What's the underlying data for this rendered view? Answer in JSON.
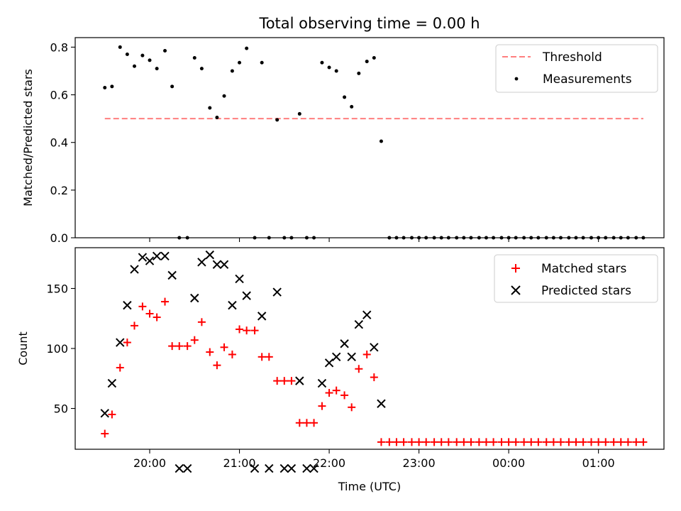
{
  "chart_data": [
    {
      "type": "scatter",
      "title": "Total observing time = 0.00 h",
      "xlabel": "",
      "ylabel": "Matched/Predicted stars",
      "xlim": [
        -0.33,
        6.23
      ],
      "ylim": [
        0,
        0.84
      ],
      "y_ticks": [
        0.0,
        0.2,
        0.4,
        0.6,
        0.8
      ],
      "y_tick_labels": [
        "0.0",
        "0.2",
        "0.4",
        "0.6",
        "0.8"
      ],
      "x_ticks": [
        0.5,
        1.5,
        2.5,
        3.5,
        4.5,
        5.5
      ],
      "x_tick_labels_visible": false,
      "grid": false,
      "legend": "top-right",
      "series": [
        {
          "name": "Threshold",
          "kind": "line",
          "style": "dashed",
          "color": "#ff7f7f",
          "x": [
            0.0,
            6.0
          ],
          "y": [
            0.5,
            0.5
          ]
        },
        {
          "name": "Measurements",
          "kind": "scatter",
          "marker": "dot",
          "color": "#000000",
          "x": [
            0.0,
            0.08,
            0.17,
            0.25,
            0.33,
            0.42,
            0.5,
            0.58,
            0.67,
            0.75,
            0.83,
            0.92,
            1.0,
            1.08,
            1.17,
            1.25,
            1.33,
            1.42,
            1.5,
            1.58,
            1.67,
            1.75,
            1.83,
            1.92,
            2.0,
            2.08,
            2.17,
            2.25,
            2.33,
            2.42,
            2.5,
            2.58,
            2.67,
            2.75,
            2.83,
            2.92,
            3.0,
            3.08,
            3.17,
            3.25,
            3.33,
            3.42,
            3.5,
            3.58,
            3.67,
            3.75,
            3.83,
            3.92,
            4.0,
            4.08,
            4.17,
            4.25,
            4.33,
            4.42,
            4.5,
            4.58,
            4.67,
            4.75,
            4.83,
            4.92,
            5.0,
            5.08,
            5.17,
            5.25,
            5.33,
            5.42,
            5.5,
            5.58,
            5.67,
            5.75,
            5.83,
            5.92,
            6.0
          ],
          "y": [
            0.63,
            0.635,
            0.8,
            0.77,
            0.72,
            0.765,
            0.745,
            0.71,
            0.785,
            0.635,
            0.0,
            0.0,
            0.755,
            0.71,
            0.545,
            0.505,
            0.595,
            0.7,
            0.735,
            0.795,
            0.0,
            0.735,
            0.0,
            0.495,
            0.0,
            0.0,
            0.52,
            0.0,
            0.0,
            0.735,
            0.715,
            0.7,
            0.59,
            0.55,
            0.69,
            0.74,
            0.755,
            0.405,
            0.0,
            0.0,
            0.0,
            0.0,
            0.0,
            0.0,
            0.0,
            0.0,
            0.0,
            0.0,
            0.0,
            0.0,
            0.0,
            0.0,
            0.0,
            0.0,
            0.0,
            0.0,
            0.0,
            0.0,
            0.0,
            0.0,
            0.0,
            0.0,
            0.0,
            0.0,
            0.0,
            0.0,
            0.0,
            0.0,
            0.0,
            0.0,
            0.0,
            0.0,
            0.0
          ]
        }
      ]
    },
    {
      "type": "scatter",
      "title": "",
      "xlabel": "Time (UTC)",
      "ylabel": "Count",
      "xlim": [
        -0.33,
        6.23
      ],
      "ylim": [
        16,
        184
      ],
      "y_ticks": [
        50,
        100,
        150
      ],
      "y_tick_labels": [
        "50",
        "100",
        "150"
      ],
      "x_ticks": [
        0.5,
        1.5,
        2.5,
        3.5,
        4.5,
        5.5
      ],
      "x_tick_labels": [
        "20:00",
        "21:00",
        "22:00",
        "23:00",
        "00:00",
        "01:00"
      ],
      "grid": false,
      "legend": "top-right",
      "series": [
        {
          "name": "Matched stars",
          "marker": "plus",
          "color": "#ff0000",
          "x": [
            0.0,
            0.08,
            0.17,
            0.25,
            0.33,
            0.42,
            0.5,
            0.58,
            0.67,
            0.75,
            0.83,
            0.92,
            1.0,
            1.08,
            1.17,
            1.25,
            1.33,
            1.42,
            1.5,
            1.58,
            1.67,
            1.75,
            1.83,
            1.92,
            2.0,
            2.08,
            2.17,
            2.25,
            2.33,
            2.42,
            2.5,
            2.58,
            2.67,
            2.75,
            2.83,
            2.92,
            3.0,
            3.08,
            3.17,
            3.25,
            3.33,
            3.42,
            3.5,
            3.58,
            3.67,
            3.75,
            3.83,
            3.92,
            4.0,
            4.08,
            4.17,
            4.25,
            4.33,
            4.42,
            4.5,
            4.58,
            4.67,
            4.75,
            4.83,
            4.92,
            5.0,
            5.08,
            5.17,
            5.25,
            5.33,
            5.42,
            5.5,
            5.58,
            5.67,
            5.75,
            5.83,
            5.92,
            6.0
          ],
          "y": [
            29,
            45,
            84,
            105,
            119,
            135,
            129,
            126,
            139,
            102,
            102,
            102,
            107,
            122,
            97,
            86,
            101,
            95,
            116,
            115,
            115,
            93,
            93,
            73,
            73,
            73,
            38,
            38,
            38,
            52,
            63,
            65,
            61,
            51,
            83,
            95,
            76,
            22,
            22,
            22,
            22,
            22,
            22,
            22,
            22,
            22,
            22,
            22,
            22,
            22,
            22,
            22,
            22,
            22,
            22,
            22,
            22,
            22,
            22,
            22,
            22,
            22,
            22,
            22,
            22,
            22,
            22,
            22,
            22,
            22,
            22,
            22,
            22
          ]
        },
        {
          "name": "Predicted stars",
          "marker": "x",
          "color": "#000000",
          "x": [
            0.0,
            0.08,
            0.17,
            0.25,
            0.33,
            0.42,
            0.5,
            0.58,
            0.67,
            0.75,
            0.83,
            0.92,
            1.0,
            1.08,
            1.17,
            1.25,
            1.33,
            1.42,
            1.5,
            1.58,
            1.67,
            1.75,
            1.83,
            1.92,
            2.0,
            2.08,
            2.17,
            2.25,
            2.33,
            2.42,
            2.5,
            2.58,
            2.67,
            2.75,
            2.83,
            2.92,
            3.0,
            3.08
          ],
          "y": [
            46,
            71,
            105,
            136,
            166,
            176,
            173,
            177,
            177,
            161,
            0,
            0,
            142,
            172,
            178,
            170,
            170,
            136,
            158,
            144,
            0,
            127,
            0,
            147,
            0,
            0,
            73,
            0,
            0,
            71,
            88,
            93,
            104,
            93,
            120,
            128,
            101,
            54
          ]
        }
      ]
    }
  ]
}
